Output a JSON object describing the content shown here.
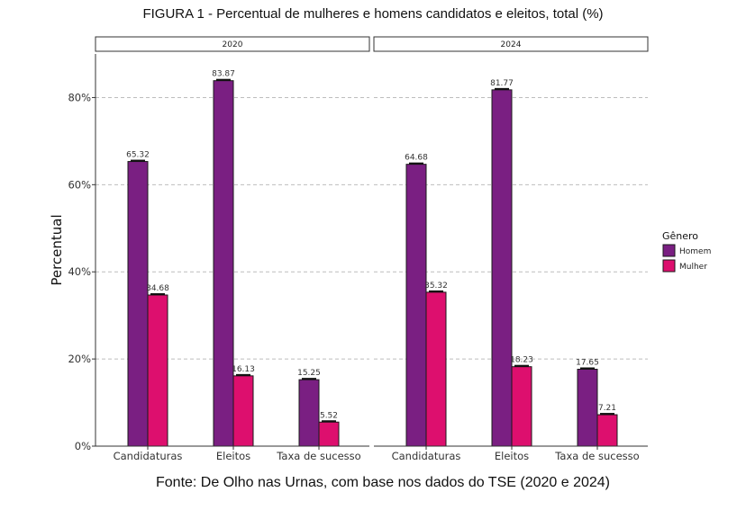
{
  "chart_data": {
    "type": "bar",
    "title": "FIGURA 1 - Percentual de mulheres e homens candidatos e eleitos, total (%)",
    "caption": "Fonte: De Olho nas Urnas, com base nos dados do TSE (2020 e 2024)",
    "ylabel": "Percentual",
    "ylim": [
      0,
      90
    ],
    "yticks": [
      0,
      20,
      40,
      60,
      80
    ],
    "ytick_labels": [
      "0%",
      "20%",
      "40%",
      "60%",
      "80%"
    ],
    "grid": "horizontal dashed",
    "categories": [
      "Candidaturas",
      "Eleitos",
      "Taxa de sucesso"
    ],
    "legend": {
      "title": "Gênero",
      "position": "right"
    },
    "panels": [
      {
        "label": "2020",
        "series": [
          {
            "name": "Homem",
            "color": "#7a1f82",
            "values": [
              65.32,
              83.87,
              15.25
            ],
            "labels": [
              "65.32",
              "83.87",
              "15.25"
            ]
          },
          {
            "name": "Mulher",
            "color": "#dd0f6e",
            "values": [
              34.68,
              16.13,
              5.52
            ],
            "labels": [
              "34.68",
              "16.13",
              "5.52"
            ]
          }
        ]
      },
      {
        "label": "2024",
        "series": [
          {
            "name": "Homem",
            "color": "#7a1f82",
            "values": [
              64.68,
              81.77,
              17.65
            ],
            "labels": [
              "64.68",
              "81.77",
              "17.65"
            ]
          },
          {
            "name": "Mulher",
            "color": "#dd0f6e",
            "values": [
              35.32,
              18.23,
              7.21
            ],
            "labels": [
              "35.32",
              "18.23",
              "7.21"
            ]
          }
        ]
      }
    ]
  }
}
